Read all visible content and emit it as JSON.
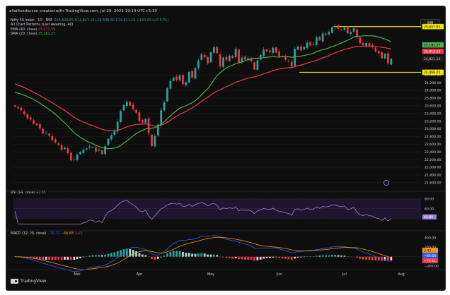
{
  "header": {
    "credit": "allaifinedsucon created with TradingView.com, Jul 29, 2025 19:13 UTC+5:30"
  },
  "legend": {
    "symbol": "Nifty 50 Index · 1D · NSE",
    "ohlc": "O24,609.65 H24,847.15 L24,598.60 C24,821.10 +140.20 (+0.57%)",
    "patterns": "All Chart Patterns (Last Awaiting, All)",
    "ema": "EMA (40, close)",
    "ema_value": "25,013.59",
    "sma": "SMA (20, close)",
    "sma_value": "25,181.27"
  },
  "currency": "INR",
  "rsi": {
    "label": "RSI (14, close)",
    "value": "42.85",
    "levels": [
      "80.00",
      "60.00",
      "40.00"
    ],
    "badge": "42.85"
  },
  "macd": {
    "label": "MACD (12, 26, close)",
    "value": "−70.11",
    "signal_value": "−66.68",
    "hist_value": "3.43",
    "levels": [
      "400.00",
      "200.00",
      "−200.00"
    ],
    "badges": [
      "3.43",
      "−66.68",
      "−70.11"
    ]
  },
  "footer": {
    "brand": "TradingView"
  },
  "colors": {
    "up": "#26a69a",
    "down": "#f23645",
    "ema": "#f23645",
    "sma": "#4caf50",
    "level": "#f5e400",
    "macd_line": "#2962ff",
    "signal_line": "#ff9800",
    "rsi_line": "#9c7fe0"
  },
  "chart_data": {
    "type": "candlestick",
    "price_axis_ticks": [
      "24,400.00",
      "24,200.00",
      "24,000.00",
      "23,800.00",
      "23,600.00",
      "23,400.00",
      "23,200.00",
      "23,000.00",
      "22,800.00",
      "22,600.00",
      "22,400.00",
      "22,200.00",
      "22,000.00",
      "21,800.00",
      "21,600.00"
    ],
    "ylim": [
      21450,
      25780
    ],
    "time_axis_labels": [
      "Mar",
      "Apr",
      "May",
      "Jun",
      "Jul",
      "Aug"
    ],
    "price_badges": [
      {
        "label": "25,657.85",
        "value": 25657.85,
        "style": "level"
      },
      {
        "label": "25,181.27",
        "value": 25181.27,
        "style": "sma"
      },
      {
        "label": "25,013.59",
        "value": 25013.59,
        "style": "ema"
      },
      {
        "label": "24,821.10",
        "value": 24821.1,
        "style": "last"
      },
      {
        "label": "24,469.05",
        "value": 24469.05,
        "style": "level"
      }
    ],
    "levels": [
      {
        "value": 25657.85,
        "from": 103
      },
      {
        "value": 24469.05,
        "from": 92
      }
    ],
    "closes": [
      23570,
      23530,
      23480,
      23380,
      23270,
      23240,
      23130,
      23090,
      23010,
      22880,
      22900,
      22820,
      22710,
      22650,
      22580,
      22450,
      22510,
      22370,
      22180,
      22200,
      22330,
      22400,
      22460,
      22490,
      22540,
      22520,
      22410,
      22460,
      22340,
      22550,
      22740,
      22830,
      22960,
      23180,
      23460,
      23620,
      23700,
      23600,
      23510,
      23420,
      23200,
      23160,
      23260,
      22880,
      22550,
      22810,
      23110,
      23480,
      23690,
      24060,
      24240,
      24330,
      24270,
      24390,
      24160,
      24210,
      24480,
      24330,
      24580,
      24770,
      24940,
      24860,
      24700,
      24990,
      25120,
      24970,
      24620,
      24850,
      24790,
      24900,
      24840,
      25080,
      24720,
      24850,
      24800,
      24830,
      24760,
      24540,
      24780,
      24920,
      25060,
      25010,
      24990,
      25110,
      24980,
      24890,
      24870,
      24800,
      24750,
      24620,
      25080,
      25140,
      25040,
      25120,
      25240,
      25170,
      25190,
      25380,
      25300,
      25480,
      25440,
      25520,
      25640,
      25660,
      25600,
      25570,
      25630,
      25480,
      25510,
      25620,
      25380,
      25220,
      25170,
      25230,
      25150,
      25130,
      25010,
      24960,
      24840,
      24950,
      24700,
      24821
    ]
  }
}
